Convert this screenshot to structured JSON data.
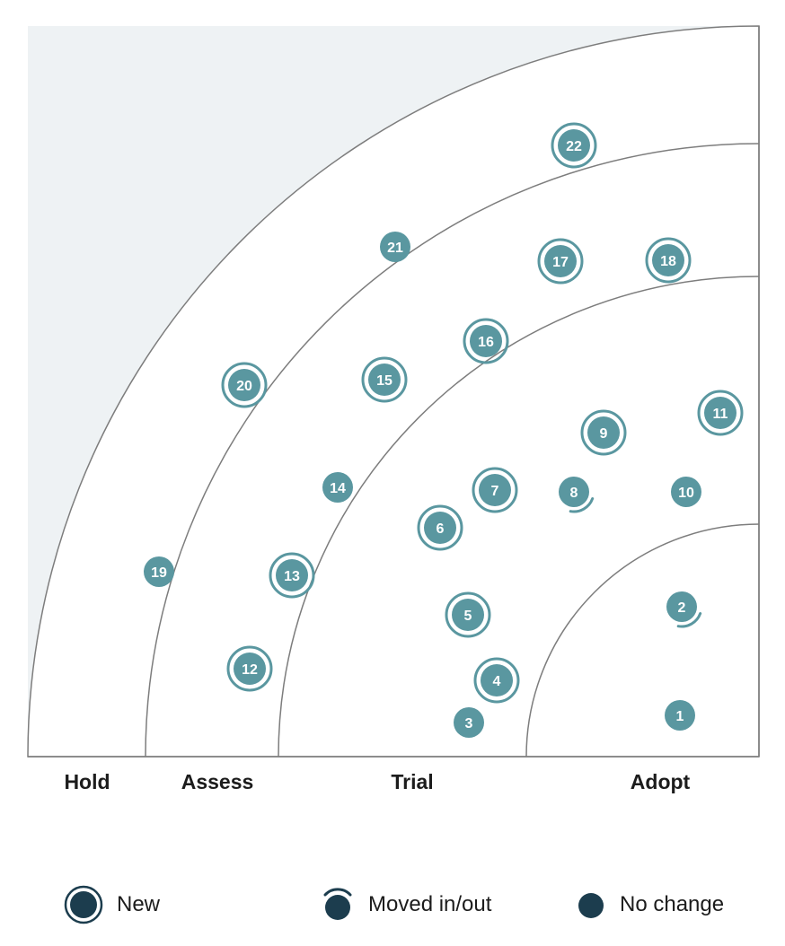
{
  "rings": [
    "Hold",
    "Assess",
    "Trial",
    "Adopt"
  ],
  "legend": {
    "new": "New",
    "moved": "Moved in/out",
    "no_change": "No change"
  },
  "colors": {
    "blip": "#5a97a0",
    "legend_dot": "#1c3d4e",
    "outer_fill": "#eef2f4",
    "ring_line": "#7d7d7d"
  },
  "blips": [
    {
      "id": "1",
      "ring": "Adopt",
      "status": "no_change"
    },
    {
      "id": "2",
      "ring": "Adopt",
      "status": "moved"
    },
    {
      "id": "3",
      "ring": "Trial",
      "status": "no_change"
    },
    {
      "id": "4",
      "ring": "Trial",
      "status": "new"
    },
    {
      "id": "5",
      "ring": "Trial",
      "status": "new"
    },
    {
      "id": "6",
      "ring": "Trial",
      "status": "new"
    },
    {
      "id": "7",
      "ring": "Trial",
      "status": "new"
    },
    {
      "id": "8",
      "ring": "Trial",
      "status": "moved"
    },
    {
      "id": "9",
      "ring": "Trial",
      "status": "new"
    },
    {
      "id": "10",
      "ring": "Trial",
      "status": "no_change"
    },
    {
      "id": "11",
      "ring": "Trial",
      "status": "new"
    },
    {
      "id": "12",
      "ring": "Assess",
      "status": "new"
    },
    {
      "id": "13",
      "ring": "Assess",
      "status": "new"
    },
    {
      "id": "14",
      "ring": "Assess",
      "status": "no_change"
    },
    {
      "id": "15",
      "ring": "Assess",
      "status": "new"
    },
    {
      "id": "16",
      "ring": "Assess",
      "status": "new"
    },
    {
      "id": "17",
      "ring": "Assess",
      "status": "new"
    },
    {
      "id": "18",
      "ring": "Assess",
      "status": "new"
    },
    {
      "id": "19",
      "ring": "Hold",
      "status": "no_change"
    },
    {
      "id": "20",
      "ring": "Hold",
      "status": "new"
    },
    {
      "id": "21",
      "ring": "Hold",
      "status": "no_change"
    },
    {
      "id": "22",
      "ring": "Hold",
      "status": "new"
    }
  ]
}
